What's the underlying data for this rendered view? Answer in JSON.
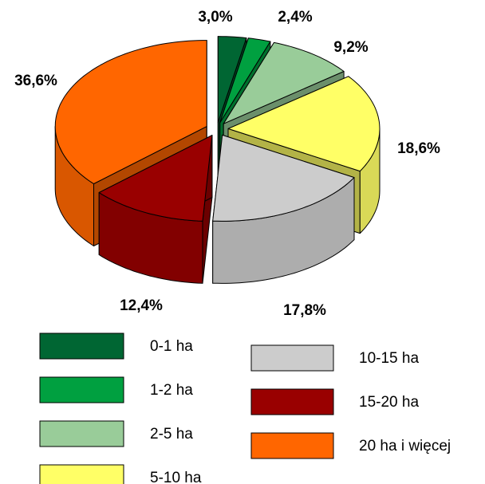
{
  "chart_data": {
    "type": "pie3d",
    "categories": [
      "0-1 ha",
      "1-2 ha",
      "2-5 ha",
      "5-10 ha",
      "10-15 ha",
      "15-20 ha",
      "20 ha i więcej"
    ],
    "values": [
      3.0,
      2.4,
      9.2,
      18.6,
      17.8,
      12.4,
      36.6
    ],
    "value_labels": [
      "3,0%",
      "2,4%",
      "9,2%",
      "18,6%",
      "17,8%",
      "12,4%",
      "36,6%"
    ],
    "colors": [
      "#006633",
      "#00a040",
      "#99cc99",
      "#ffff66",
      "#cccccc",
      "#990000",
      "#ff6600"
    ]
  }
}
